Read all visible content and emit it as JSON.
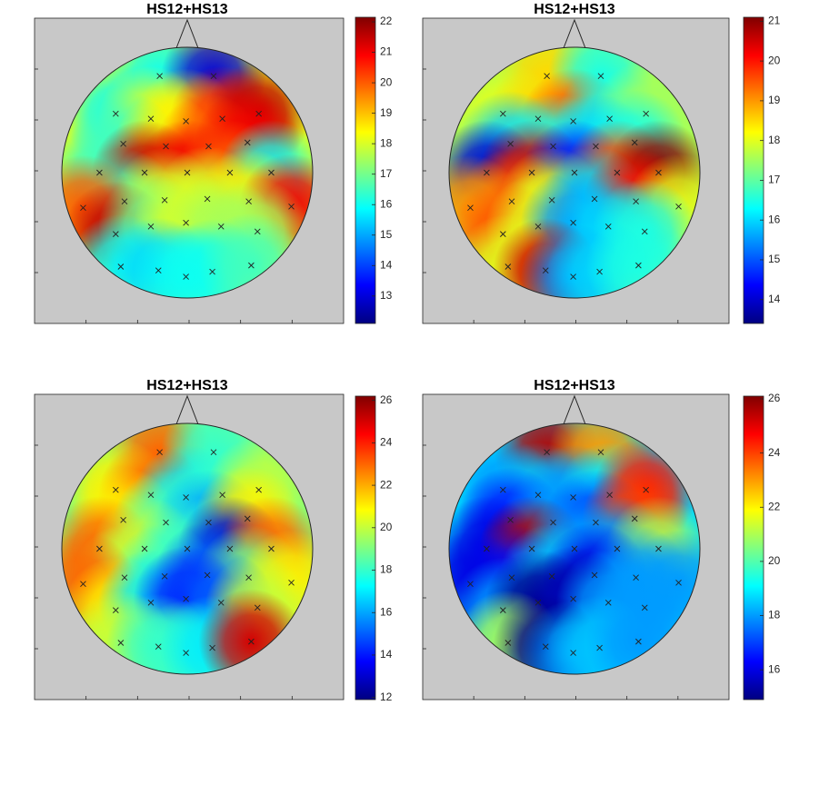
{
  "chart_data": [
    {
      "type": "topoplot",
      "title": "HS12+HS13",
      "clim": [
        12.1,
        22.15
      ],
      "yticks": [
        13,
        14,
        15,
        16,
        17,
        18,
        19,
        20,
        21,
        22
      ],
      "x": [
        -0.22,
        0.21,
        -0.57,
        -0.29,
        -0.01,
        0.28,
        0.57,
        -0.51,
        -0.17,
        0.17,
        0.48,
        -0.7,
        -0.34,
        0,
        0.34,
        0.67,
        -0.5,
        -0.18,
        0.16,
        0.49,
        -0.83,
        0.83,
        -0.57,
        -0.29,
        -0.01,
        0.27,
        0.56,
        -0.53,
        -0.23,
        -0.01,
        0.2,
        0.51
      ],
      "y": [
        0.77,
        0.77,
        0.47,
        0.43,
        0.41,
        0.43,
        0.47,
        0.23,
        0.21,
        0.21,
        0.24,
        0,
        0,
        0,
        0,
        0,
        -0.23,
        -0.22,
        -0.21,
        -0.23,
        -0.28,
        -0.27,
        -0.49,
        -0.43,
        -0.4,
        -0.43,
        -0.47,
        -0.75,
        -0.78,
        -0.83,
        -0.79,
        -0.74
      ],
      "values": [
        16,
        13,
        16,
        18,
        18.5,
        20.5,
        21.5,
        16.5,
        18.5,
        20,
        21,
        16.5,
        21.5,
        21,
        20,
        16,
        16.5,
        18,
        18,
        18.5,
        20,
        21,
        21.5,
        17,
        18,
        17.5,
        17.5,
        16,
        15.5,
        16,
        16,
        16.5
      ]
    },
    {
      "type": "topoplot",
      "title": "HS12+HS13",
      "clim": [
        13.4,
        21.1
      ],
      "yticks": [
        14,
        15,
        16,
        17,
        18,
        19,
        20,
        21
      ],
      "x": [
        -0.22,
        0.21,
        -0.57,
        -0.29,
        -0.01,
        0.28,
        0.57,
        -0.51,
        -0.17,
        0.17,
        0.48,
        -0.7,
        -0.34,
        0,
        0.34,
        0.67,
        -0.5,
        -0.18,
        0.16,
        0.49,
        -0.83,
        0.83,
        -0.57,
        -0.29,
        -0.01,
        0.27,
        0.56,
        -0.53,
        -0.23,
        -0.01,
        0.2,
        0.51
      ],
      "y": [
        0.77,
        0.77,
        0.47,
        0.43,
        0.41,
        0.43,
        0.47,
        0.23,
        0.21,
        0.21,
        0.24,
        0,
        0,
        0,
        0,
        0,
        -0.23,
        -0.22,
        -0.21,
        -0.23,
        -0.28,
        -0.27,
        -0.49,
        -0.43,
        -0.4,
        -0.43,
        -0.47,
        -0.75,
        -0.78,
        -0.83,
        -0.79,
        -0.74
      ],
      "values": [
        18.5,
        16.5,
        18,
        18.5,
        19.5,
        16.5,
        17.5,
        16,
        16.5,
        16,
        16.5,
        14,
        20.5,
        14.5,
        19.5,
        21,
        19.5,
        18,
        16,
        20,
        19,
        18,
        19.5,
        18,
        15.5,
        16,
        16.5,
        18,
        20.5,
        15.5,
        16,
        16.5
      ]
    },
    {
      "type": "topoplot",
      "title": "HS12+HS13",
      "clim": [
        11.9,
        26.2
      ],
      "yticks": [
        12,
        14,
        16,
        18,
        20,
        22,
        24,
        26
      ],
      "x": [
        -0.22,
        0.21,
        -0.57,
        -0.29,
        -0.01,
        0.28,
        0.57,
        -0.51,
        -0.17,
        0.17,
        0.48,
        -0.7,
        -0.34,
        0,
        0.34,
        0.67,
        -0.5,
        -0.18,
        0.16,
        0.49,
        -0.83,
        0.83,
        -0.57,
        -0.29,
        -0.01,
        0.27,
        0.56,
        -0.53,
        -0.23,
        -0.01,
        0.2,
        0.51
      ],
      "y": [
        0.77,
        0.77,
        0.47,
        0.43,
        0.41,
        0.43,
        0.47,
        0.23,
        0.21,
        0.21,
        0.24,
        0,
        0,
        0,
        0,
        0,
        -0.23,
        -0.22,
        -0.21,
        -0.23,
        -0.28,
        -0.27,
        -0.49,
        -0.43,
        -0.4,
        -0.43,
        -0.47,
        -0.75,
        -0.78,
        -0.83,
        -0.79,
        -0.74
      ],
      "values": [
        23,
        18,
        21,
        23,
        17,
        18,
        20,
        21,
        18,
        16,
        21,
        23,
        20,
        18,
        13,
        23,
        20,
        18,
        15,
        19,
        23,
        21,
        21,
        17,
        14,
        15,
        20,
        20,
        18,
        18,
        17,
        25
      ]
    },
    {
      "type": "topoplot",
      "title": "HS12+HS13",
      "clim": [
        14.9,
        26.1
      ],
      "yticks": [
        16,
        18,
        20,
        22,
        24,
        26
      ],
      "x": [
        -0.22,
        0.21,
        -0.57,
        -0.29,
        -0.01,
        0.28,
        0.57,
        -0.51,
        -0.17,
        0.17,
        0.48,
        -0.7,
        -0.34,
        0,
        0.34,
        0.67,
        -0.5,
        -0.18,
        0.16,
        0.49,
        -0.83,
        0.83,
        -0.57,
        -0.29,
        -0.01,
        0.27,
        0.56,
        -0.53,
        -0.23,
        -0.01,
        0.2,
        0.51
      ],
      "y": [
        0.77,
        0.77,
        0.47,
        0.43,
        0.41,
        0.43,
        0.47,
        0.23,
        0.21,
        0.21,
        0.24,
        0,
        0,
        0,
        0,
        0,
        -0.23,
        -0.22,
        -0.21,
        -0.23,
        -0.28,
        -0.27,
        -0.49,
        -0.43,
        -0.4,
        -0.43,
        -0.47,
        -0.75,
        -0.78,
        -0.83,
        -0.79,
        -0.74
      ],
      "values": [
        25.5,
        23,
        18,
        18.5,
        18,
        19,
        24.5,
        16.5,
        18,
        17,
        24,
        16,
        25.5,
        18,
        18,
        21,
        16.5,
        18.5,
        16,
        18,
        16,
        18,
        18,
        15,
        15.5,
        18,
        18,
        21,
        15,
        18,
        18.5,
        18
      ]
    }
  ]
}
